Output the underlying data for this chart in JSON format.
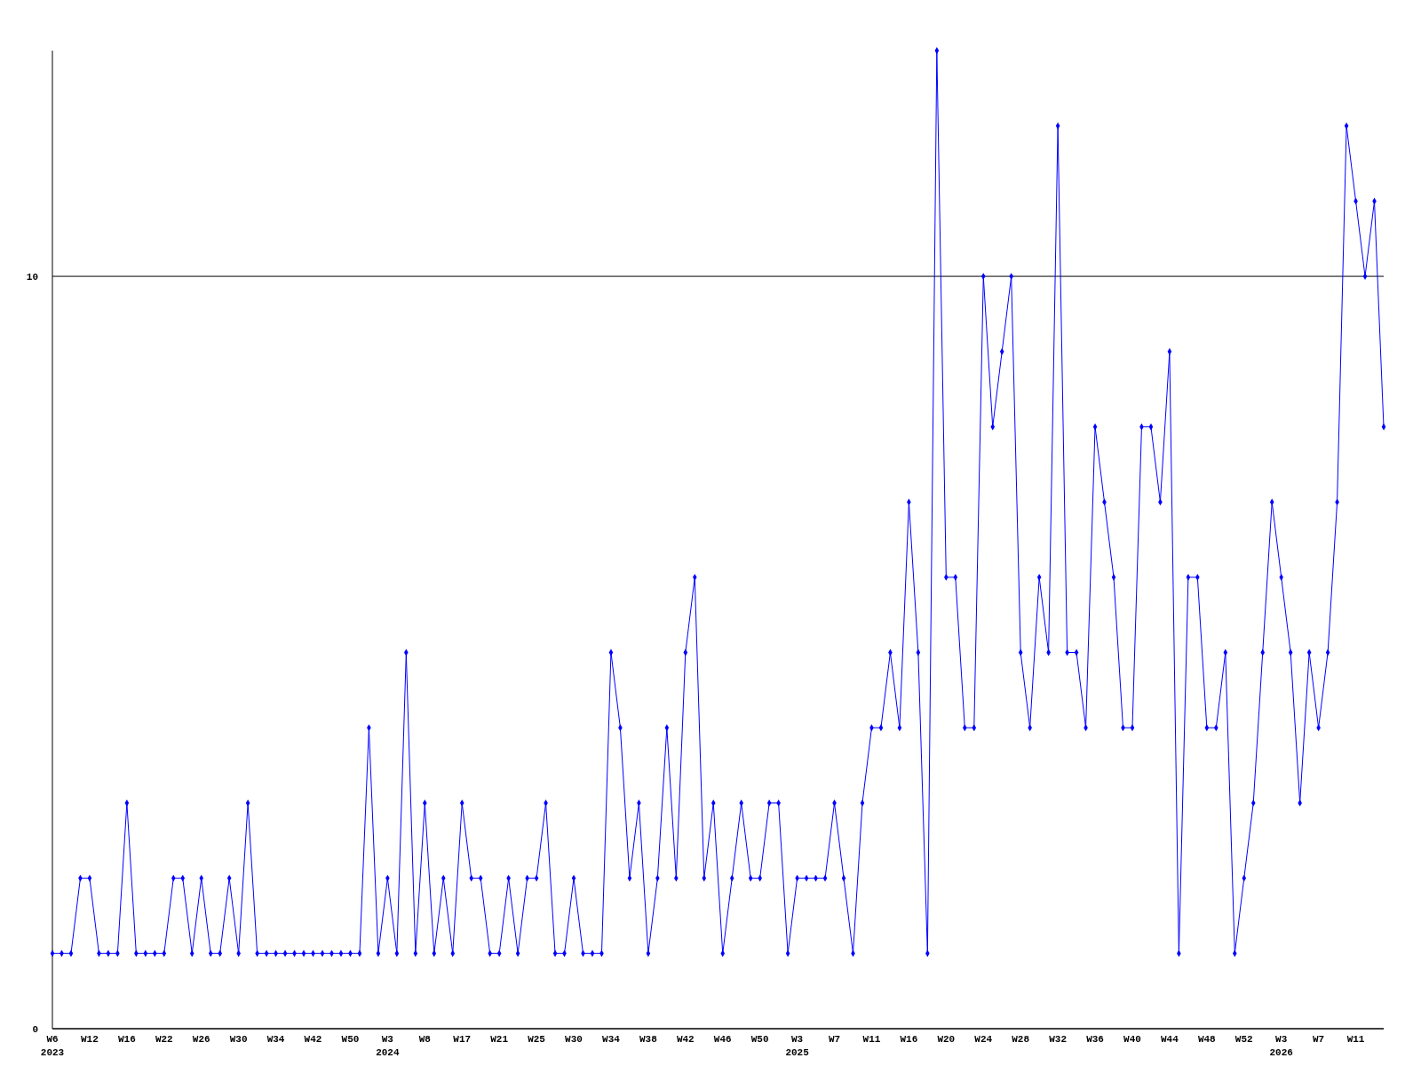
{
  "chart_data": {
    "type": "line",
    "categories": [
      "W6\n2023",
      null,
      null,
      null,
      "W12",
      null,
      null,
      null,
      "W16",
      null,
      null,
      null,
      "W22",
      null,
      null,
      null,
      "W26",
      null,
      null,
      null,
      "W30",
      null,
      null,
      null,
      "W34",
      null,
      null,
      null,
      "W42",
      null,
      null,
      null,
      "W50",
      null,
      null,
      null,
      "W3\n2024",
      null,
      null,
      null,
      "W8",
      null,
      null,
      null,
      "W17",
      null,
      null,
      null,
      "W21",
      null,
      null,
      null,
      "W25",
      null,
      null,
      null,
      "W30",
      null,
      null,
      null,
      "W34",
      null,
      null,
      null,
      "W38",
      null,
      null,
      null,
      "W42",
      null,
      null,
      null,
      "W46",
      null,
      null,
      null,
      "W50",
      null,
      null,
      null,
      "W3\n2025",
      null,
      null,
      null,
      "W7",
      null,
      null,
      null,
      "W11",
      null,
      null,
      null,
      "W16",
      null,
      null,
      null,
      "W20",
      null,
      null,
      null,
      "W24",
      null,
      null,
      null,
      "W28",
      null,
      null,
      null,
      "W32",
      null,
      null,
      null,
      "W36",
      null,
      null,
      null,
      "W40",
      null,
      null,
      null,
      "W44",
      null,
      null,
      null,
      "W48",
      null,
      null,
      null,
      "W52",
      null,
      null,
      null,
      "W3\n2026",
      null,
      null,
      null,
      "W7",
      null,
      null,
      null,
      "W11",
      null,
      null,
      null
    ],
    "series": [
      {
        "color": "#0000ff",
        "values": [
          1,
          1,
          1,
          2,
          2,
          1,
          1,
          1,
          3,
          1,
          1,
          1,
          1,
          2,
          2,
          1,
          2,
          1,
          1,
          2,
          1,
          3,
          1,
          1,
          1,
          1,
          1,
          1,
          1,
          1,
          1,
          1,
          1,
          1,
          4,
          1,
          2,
          1,
          5,
          1,
          3,
          1,
          2,
          1,
          3,
          2,
          2,
          1,
          1,
          2,
          1,
          2,
          2,
          3,
          1,
          1,
          2,
          1,
          1,
          1,
          5,
          4,
          2,
          3,
          1,
          2,
          4,
          2,
          5,
          6,
          2,
          3,
          1,
          2,
          3,
          2,
          2,
          3,
          3,
          1,
          2,
          2,
          2,
          2,
          3,
          2,
          1,
          3,
          4,
          4,
          5,
          4,
          7,
          5,
          1,
          13,
          6,
          6,
          4,
          4,
          10,
          8,
          9,
          10,
          5,
          4,
          6,
          5,
          12,
          5,
          5,
          4,
          8,
          7,
          6,
          4,
          4,
          8,
          8,
          7,
          9,
          1,
          6,
          6,
          4,
          4,
          5,
          1,
          2,
          3,
          5,
          7,
          6,
          5,
          3,
          5,
          4,
          5,
          7,
          12,
          11,
          10,
          11,
          8
        ]
      }
    ],
    "ylim": [
      0,
      13
    ],
    "yticks": [
      0,
      10
    ],
    "grid": "y",
    "marker": "diamond",
    "line_style": "solid"
  }
}
